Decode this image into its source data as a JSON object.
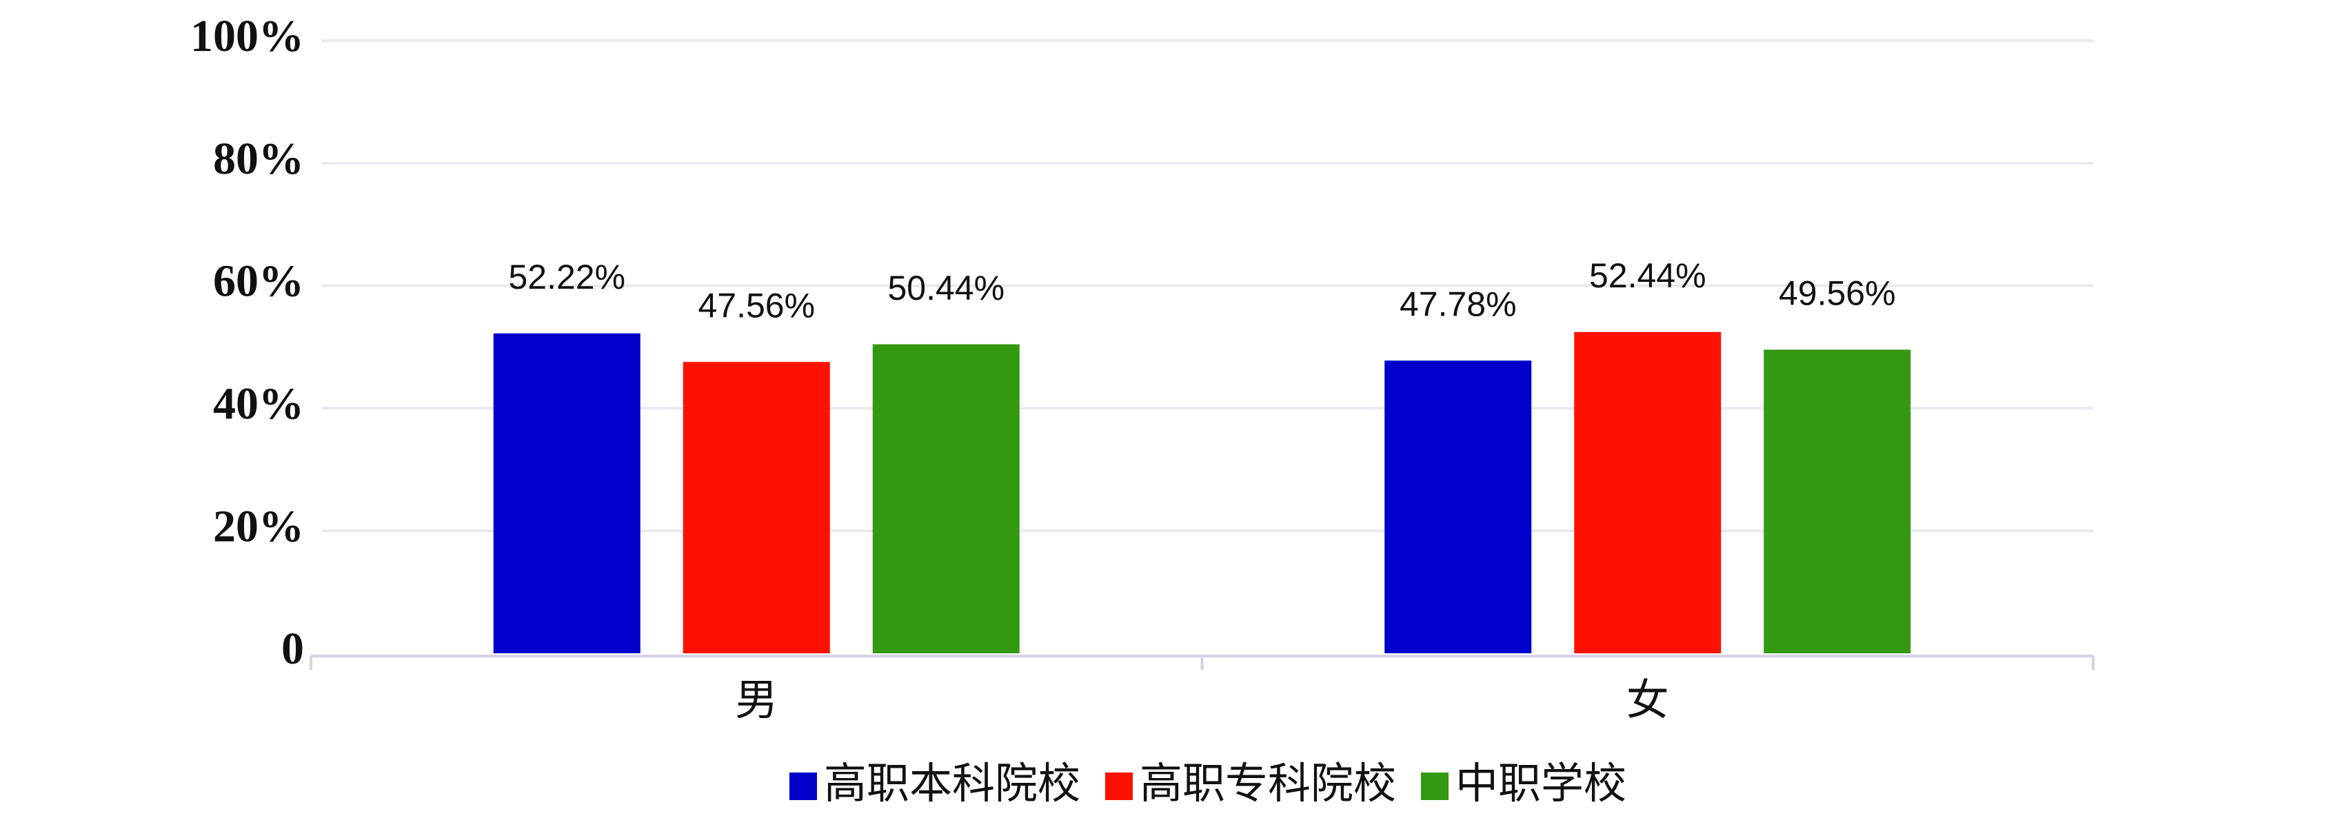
{
  "chart_data": {
    "type": "bar",
    "categories": [
      "男",
      "女"
    ],
    "series": [
      {
        "name": "高职本科院校",
        "color": "#0000cc",
        "values": [
          52.22,
          47.78
        ],
        "value_labels": [
          "52.22%",
          "47.78%"
        ]
      },
      {
        "name": "高职专科院校",
        "color": "#ff1100",
        "values": [
          47.56,
          52.44
        ],
        "value_labels": [
          "47.56%",
          "52.44%"
        ]
      },
      {
        "name": "中职学校",
        "color": "#339911",
        "values": [
          50.44,
          49.56
        ],
        "value_labels": [
          "50.44%",
          "49.56%"
        ]
      }
    ],
    "ylim": [
      0,
      100
    ],
    "yticks": [
      0,
      {
        "value": 20,
        "label": "20%"
      },
      {
        "value": 40,
        "label": "40%"
      },
      {
        "value": 60,
        "label": "60%"
      },
      {
        "value": 80,
        "label": "80%"
      },
      {
        "value": 100,
        "label": "100%"
      }
    ],
    "grid": true,
    "legend": "bottom"
  }
}
